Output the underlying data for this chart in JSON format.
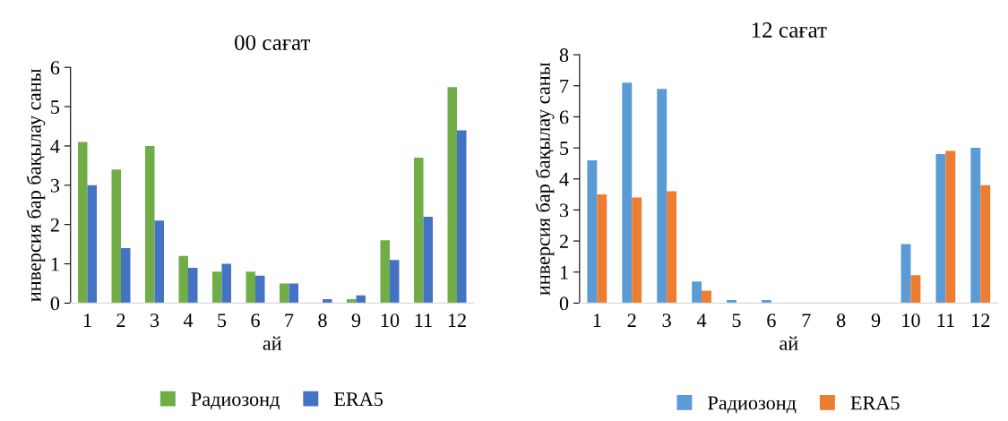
{
  "chart_data": [
    {
      "type": "bar",
      "title": "00 сағат",
      "xlabel": "ай",
      "ylabel": "инверсия бар бақылау саны",
      "categories": [
        "1",
        "2",
        "3",
        "4",
        "5",
        "6",
        "7",
        "8",
        "9",
        "10",
        "11",
        "12"
      ],
      "series": [
        {
          "name": "Радиозонд",
          "color": "#70ad47",
          "values": [
            4.1,
            3.4,
            4.0,
            1.2,
            0.8,
            0.8,
            0.5,
            0,
            0.1,
            1.6,
            3.7,
            5.5
          ]
        },
        {
          "name": "ERA5",
          "color": "#4472c4",
          "values": [
            3.0,
            1.4,
            2.1,
            0.9,
            1.0,
            0.7,
            0.5,
            0.1,
            0.2,
            1.1,
            2.2,
            4.4
          ]
        }
      ],
      "ylim": [
        0,
        6
      ],
      "yticks": [
        0,
        1,
        2,
        3,
        4,
        5,
        6
      ],
      "grid": false,
      "legend": "bottom"
    },
    {
      "type": "bar",
      "title": "12 сағат",
      "xlabel": "ай",
      "ylabel": "инверсия бар бақылау саны",
      "categories": [
        "1",
        "2",
        "3",
        "4",
        "5",
        "6",
        "7",
        "8",
        "9",
        "10",
        "11",
        "12"
      ],
      "series": [
        {
          "name": "Радиозонд",
          "color": "#5b9bd5",
          "values": [
            4.6,
            7.1,
            6.9,
            0.7,
            0.1,
            0.1,
            0,
            0,
            0,
            1.9,
            4.8,
            5.0
          ]
        },
        {
          "name": "ERA5",
          "color": "#ed7d31",
          "values": [
            3.5,
            3.4,
            3.6,
            0.4,
            0,
            0,
            0,
            0,
            0,
            0.9,
            4.9,
            3.8
          ]
        }
      ],
      "ylim": [
        0,
        8
      ],
      "yticks": [
        0,
        1,
        2,
        3,
        4,
        5,
        6,
        7,
        8
      ],
      "grid": false,
      "legend": "bottom"
    }
  ]
}
